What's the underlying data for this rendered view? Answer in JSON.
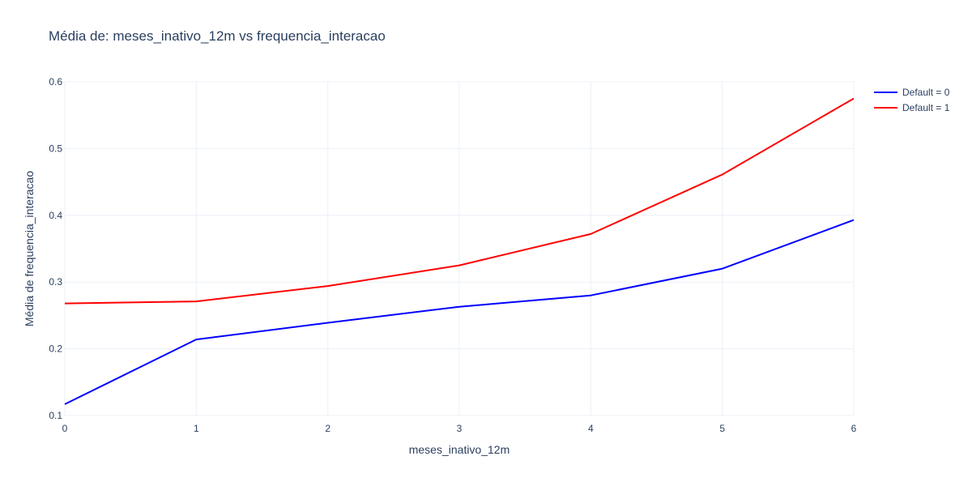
{
  "chart_data": {
    "type": "line",
    "title": "Média de: meses_inativo_12m vs frequencia_interacao",
    "xlabel": "meses_inativo_12m",
    "ylabel": "Média de frequencia_interacao",
    "x": [
      0,
      1,
      2,
      3,
      4,
      5,
      6
    ],
    "xlim": [
      0,
      6
    ],
    "ylim": [
      0.1,
      0.6
    ],
    "xticks": [
      0,
      1,
      2,
      3,
      4,
      5,
      6
    ],
    "yticks": [
      0.1,
      0.2,
      0.3,
      0.4,
      0.5,
      0.6
    ],
    "grid": true,
    "legend_position": "top-right",
    "series": [
      {
        "name": "Default = 0",
        "color": "#0000ff",
        "values": [
          0.117,
          0.214,
          0.239,
          0.263,
          0.28,
          0.32,
          0.393
        ]
      },
      {
        "name": "Default = 1",
        "color": "#ff0000",
        "values": [
          0.268,
          0.271,
          0.294,
          0.325,
          0.372,
          0.461,
          0.575
        ]
      }
    ]
  }
}
